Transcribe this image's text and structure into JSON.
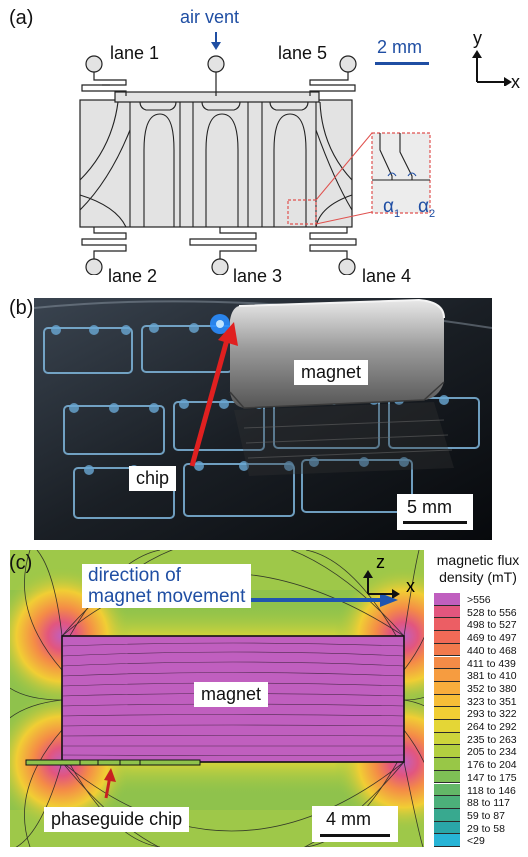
{
  "panel_a": {
    "letter": "(a)",
    "air_vent": "air vent",
    "lane_labels": [
      "lane 1",
      "lane 5",
      "lane 2",
      "lane 3",
      "lane 4"
    ],
    "scale_bar": "2 mm",
    "axis_y": "y",
    "axis_x": "x",
    "alpha1": "α",
    "alpha1_sub": "1",
    "alpha2": "α",
    "alpha2_sub": "2"
  },
  "panel_b": {
    "letter": "(b)",
    "magnet_label": "magnet",
    "chip_label": "chip",
    "scale_bar": "5 mm"
  },
  "panel_c": {
    "letter": "(c)",
    "direction_label_line1": "direction of",
    "direction_label_line2": "magnet movement",
    "magnet_label": "magnet",
    "chip_label": "phaseguide chip",
    "scale_bar": "4 mm",
    "axis_z": "z",
    "axis_x": "x",
    "legend_title_line1": "magnetic flux",
    "legend_title_line2": "density (mT)",
    "legend": [
      {
        "label": ">556",
        "color": "#c05fbf"
      },
      {
        "label": "528 to 556",
        "color": "#e2567e"
      },
      {
        "label": "498 to 527",
        "color": "#ec5e64"
      },
      {
        "label": "469 to 497",
        "color": "#f16a57"
      },
      {
        "label": "440 to 468",
        "color": "#f27a4d"
      },
      {
        "label": "411 to 439",
        "color": "#f48b47"
      },
      {
        "label": "381 to 410",
        "color": "#f69c40"
      },
      {
        "label": "352 to 380",
        "color": "#f8ad3c"
      },
      {
        "label": "323 to 351",
        "color": "#f7be37"
      },
      {
        "label": "293 to 322",
        "color": "#f1ce34"
      },
      {
        "label": "264 to 292",
        "color": "#e4d636"
      },
      {
        "label": "235 to 263",
        "color": "#cdd53b"
      },
      {
        "label": "205 to 234",
        "color": "#b3cf40"
      },
      {
        "label": "176 to 204",
        "color": "#98c747"
      },
      {
        "label": "147 to 175",
        "color": "#7ebf55"
      },
      {
        "label": "118 to 146",
        "color": "#63b767"
      },
      {
        "label": "88 to 117",
        "color": "#4cb07a"
      },
      {
        "label": "59 to 87",
        "color": "#38a98f"
      },
      {
        "label": "29 to 58",
        "color": "#2aa6a8"
      },
      {
        "label": "<29",
        "color": "#27b4d6"
      }
    ],
    "colors": {
      "magnet": "#c05fbf",
      "background": "#8fc24c"
    }
  }
}
